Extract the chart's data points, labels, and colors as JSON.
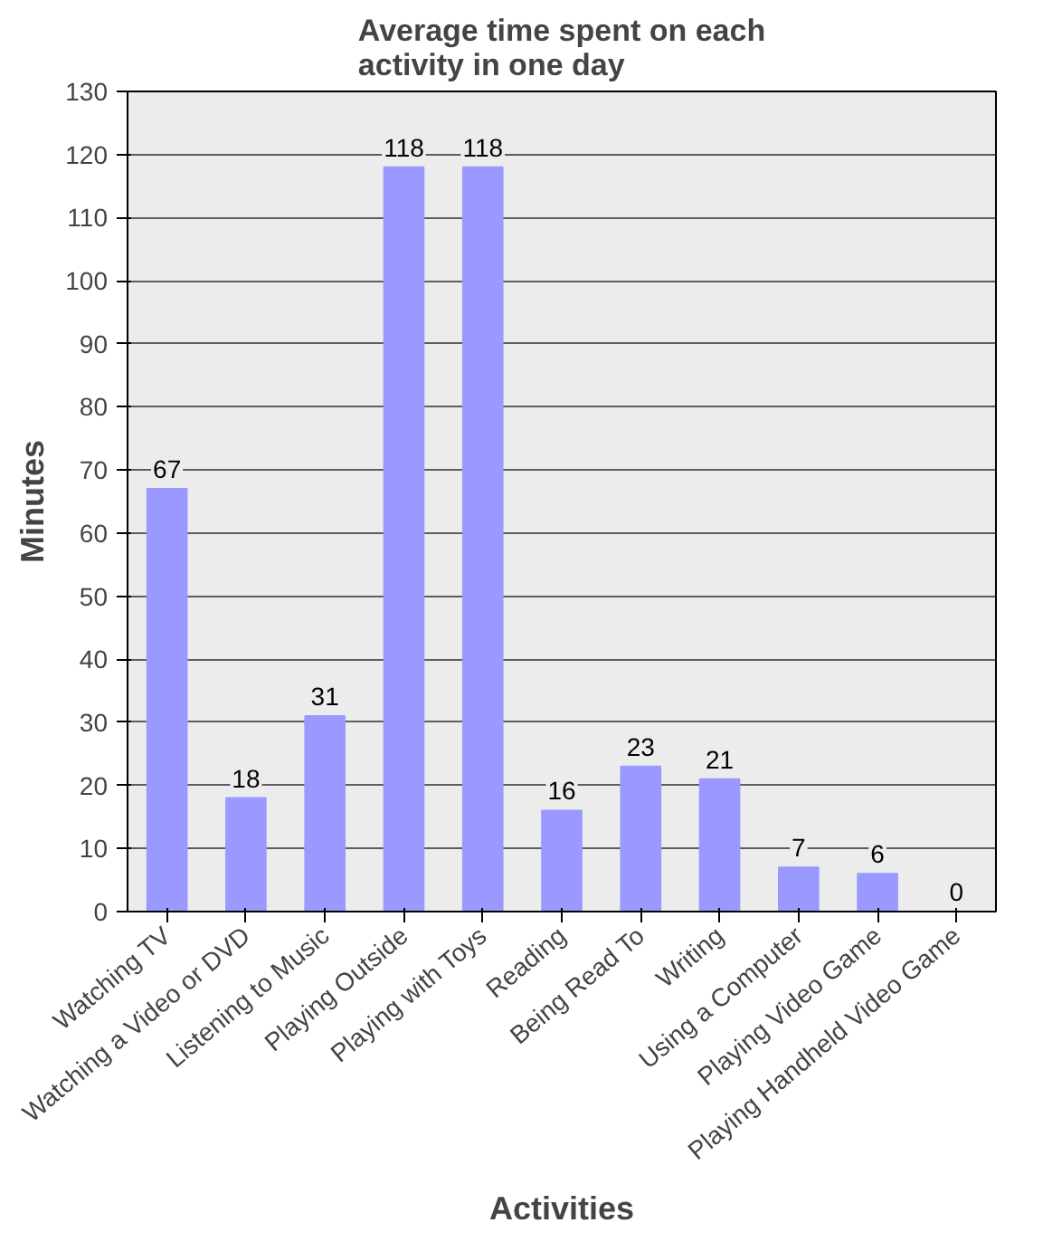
{
  "chart_data": {
    "type": "bar",
    "title": "Average time spent on each activity in one day",
    "xlabel": "Activities",
    "ylabel": "Minutes",
    "categories": [
      "Watching TV",
      "Watching a Video or DVD",
      "Listening to Music",
      "Playing Outside",
      "Playing with Toys",
      "Reading",
      "Being Read To",
      "Writing",
      "Using a Computer",
      "Playing Video Game",
      "Playing Handheld Video Game"
    ],
    "values": [
      67,
      18,
      31,
      118,
      118,
      16,
      23,
      21,
      7,
      6,
      0
    ],
    "color": "#9999ff",
    "ylim": [
      0,
      130
    ],
    "yticks": [
      0,
      10,
      20,
      30,
      40,
      50,
      60,
      70,
      80,
      90,
      100,
      110,
      120,
      130
    ],
    "grid": "y",
    "data_labels": true
  }
}
